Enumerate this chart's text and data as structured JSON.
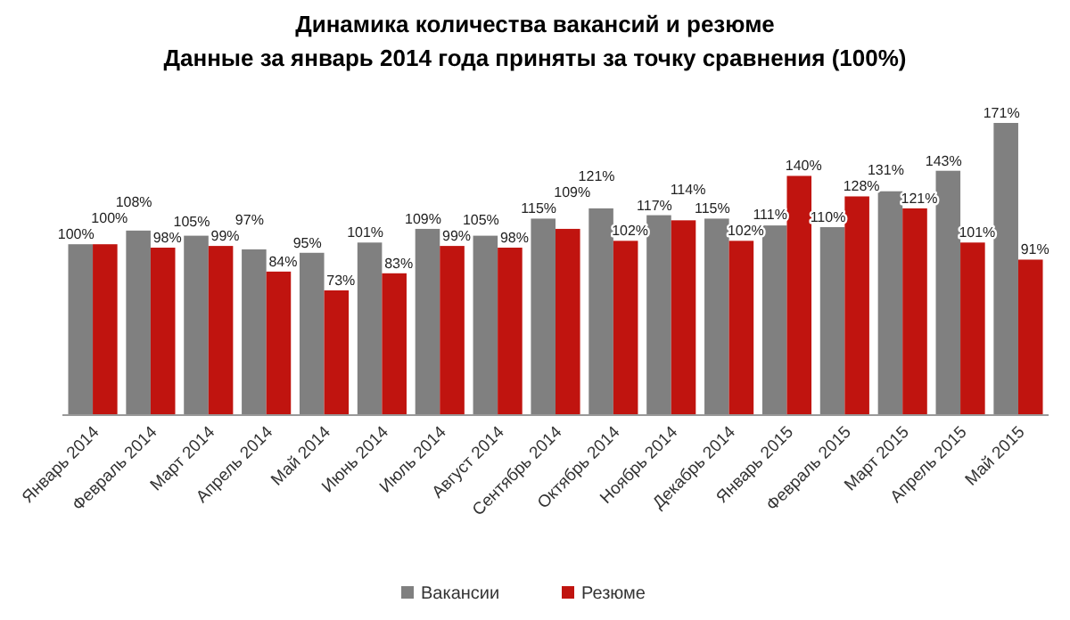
{
  "chart_data": {
    "type": "bar",
    "title": "Динамика количества вакансий и резюме",
    "subtitle": "Данные за январь 2014 года приняты за точку сравнения (100%)",
    "categories": [
      "Январь 2014",
      "Февраль 2014",
      "Март 2014",
      "Апрель 2014",
      "Май 2014",
      "Июнь 2014",
      "Июль 2014",
      "Август 2014",
      "Сентябрь 2014",
      "Октябрь 2014",
      "Ноябрь 2014",
      "Декабрь 2014",
      "Январь 2015",
      "Февраль 2015",
      "Март 2015",
      "Апрель 2015",
      "Май 2015"
    ],
    "series": [
      {
        "name": "Вакансии",
        "color": "#808080",
        "values": [
          100,
          108,
          105,
          97,
          95,
          101,
          109,
          105,
          115,
          121,
          117,
          115,
          111,
          110,
          131,
          143,
          171
        ],
        "value_labels": [
          "100%",
          "108%",
          "105%",
          "97%",
          "95%",
          "101%",
          "109%",
          "105%",
          "115%",
          "121%",
          "117%",
          "115%",
          "111%",
          "110%",
          "131%",
          "143%",
          "171%"
        ]
      },
      {
        "name": "Резюме",
        "color": "#c0140f",
        "values": [
          100,
          98,
          99,
          84,
          73,
          83,
          99,
          98,
          109,
          102,
          114,
          102,
          140,
          128,
          121,
          101,
          91
        ],
        "value_labels": [
          "100%",
          "98%",
          "99%",
          "84%",
          "73%",
          "83%",
          "99%",
          "98%",
          "109%",
          "102%",
          "114%",
          "102%",
          "140%",
          "128%",
          "121%",
          "101%",
          "91%"
        ]
      }
    ],
    "legend": "bottom",
    "grid": false
  }
}
